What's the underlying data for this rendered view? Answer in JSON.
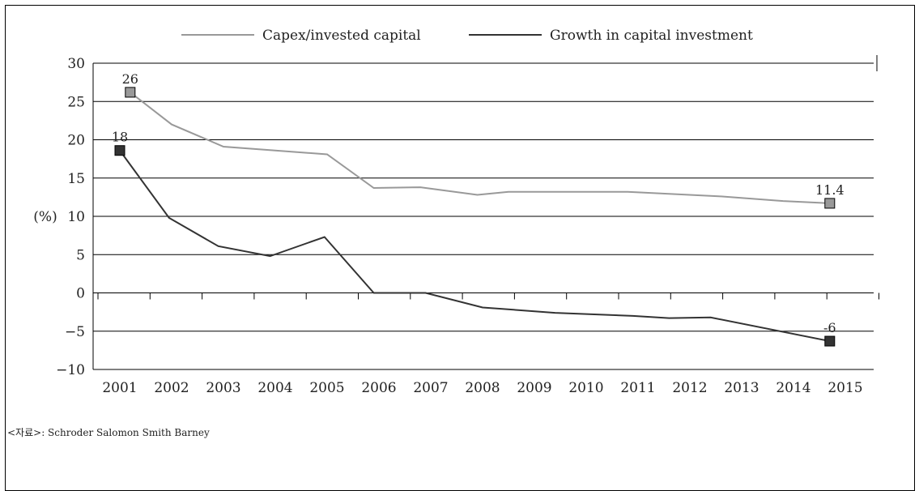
{
  "chart_data": {
    "type": "line",
    "x": [
      "2001",
      "2002",
      "2003",
      "2004",
      "2005",
      "2006",
      "2007",
      "2008",
      "2009",
      "2010",
      "2011",
      "2012",
      "2013",
      "2014",
      "2015"
    ],
    "ylim": [
      -10,
      30
    ],
    "yticks": [
      -10,
      -5,
      0,
      5,
      10,
      15,
      20,
      25,
      30
    ],
    "ylabel": "(%)",
    "grid": true,
    "legend_position": "top-center",
    "series": [
      {
        "name": "Capex/invested capital",
        "color": "#999999",
        "points": [
          [
            0.2,
            26.2
          ],
          [
            1,
            22
          ],
          [
            2,
            19.1
          ],
          [
            3,
            18.6
          ],
          [
            4,
            18.1
          ],
          [
            4.9,
            13.7
          ],
          [
            5.8,
            13.8
          ],
          [
            6.9,
            12.8
          ],
          [
            7.5,
            13.2
          ],
          [
            8.5,
            13.2
          ],
          [
            9.8,
            13.2
          ],
          [
            11.6,
            12.6
          ],
          [
            12.8,
            12
          ],
          [
            13.7,
            11.7
          ]
        ],
        "start_label": "26",
        "end_label": "11.4"
      },
      {
        "name": "Growth in capital investment",
        "color": "#333333",
        "points": [
          [
            0,
            18.6
          ],
          [
            0.95,
            9.8
          ],
          [
            1.9,
            6.1
          ],
          [
            2.9,
            4.8
          ],
          [
            3.95,
            7.3
          ],
          [
            4.9,
            0
          ],
          [
            5.9,
            0
          ],
          [
            7,
            -1.9
          ],
          [
            8.4,
            -2.6
          ],
          [
            9.9,
            -3
          ],
          [
            10.6,
            -3.3
          ],
          [
            11.4,
            -3.2
          ],
          [
            13.7,
            -6.3
          ]
        ],
        "start_label": "18",
        "end_label": "-6"
      }
    ]
  },
  "source_text": "<자료>: Schroder Salomon Smith Barney"
}
